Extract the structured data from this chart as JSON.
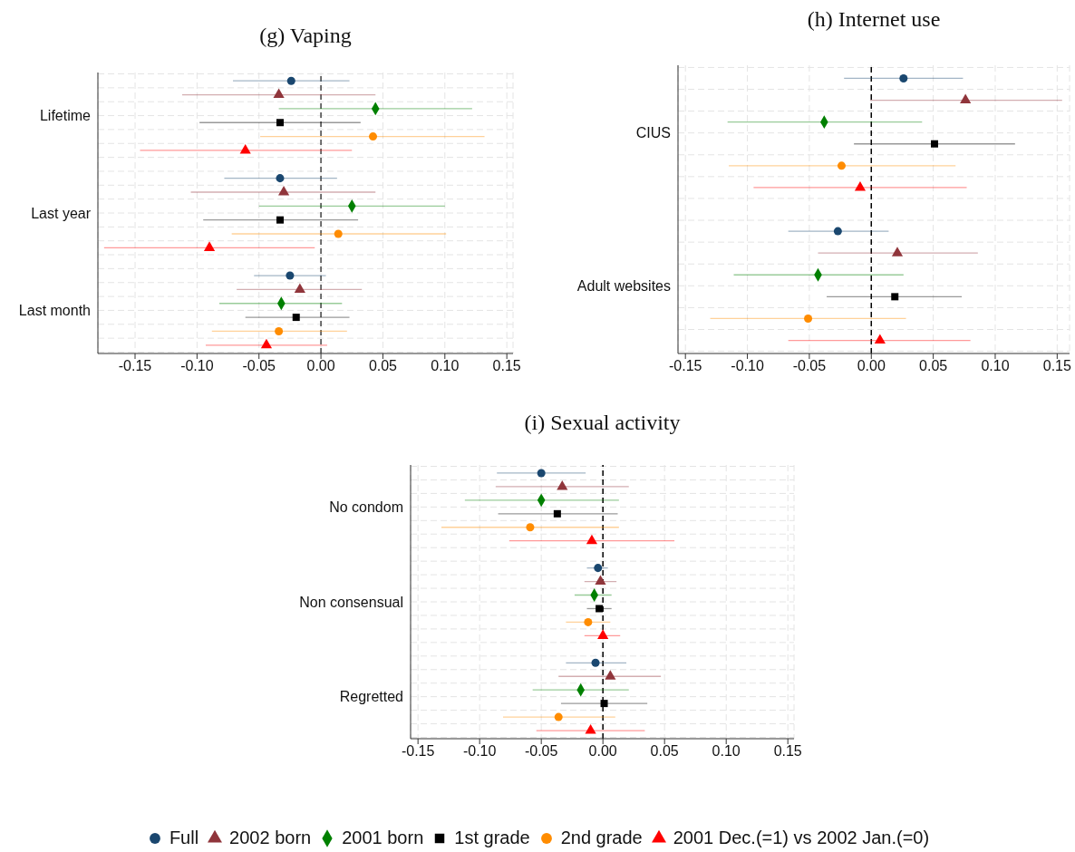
{
  "chart_data": [
    {
      "type": "scatter",
      "title": "(g) Vaping",
      "orientation": "horizontal",
      "categories": [
        "Lifetime",
        "Last year",
        "Last month"
      ],
      "xlim": [
        -0.18,
        0.155
      ],
      "xticks": [
        {
          "value": -0.15,
          "label": "-0.15"
        },
        {
          "value": -0.1,
          "label": "-0.10"
        },
        {
          "value": -0.05,
          "label": "-0.05"
        },
        {
          "value": 0,
          "label": "0.00"
        },
        {
          "value": 0.05,
          "label": "0.05"
        },
        {
          "value": 0.1,
          "label": "0.10"
        },
        {
          "value": 0.15,
          "label": "0.15"
        }
      ],
      "grid": true,
      "ref_lines": [
        {
          "axis": "x",
          "value": 0,
          "line_style": "dashed",
          "color": "#444444"
        }
      ],
      "series": [
        {
          "color": "#1a476f",
          "marker": "circle",
          "values": [
            -0.024,
            -0.033,
            -0.025
          ],
          "errors": [
            [
              -0.071,
              0.023
            ],
            [
              -0.078,
              0.013
            ],
            [
              -0.054,
              0.004
            ]
          ]
        },
        {
          "color": "#90353b",
          "marker": "triangle",
          "values": [
            -0.034,
            -0.03,
            -0.017
          ],
          "errors": [
            [
              -0.112,
              0.044
            ],
            [
              -0.105,
              0.044
            ],
            [
              -0.068,
              0.033
            ]
          ]
        },
        {
          "color": "#008000",
          "marker": "diamond",
          "values": [
            0.044,
            0.025,
            -0.032
          ],
          "errors": [
            [
              -0.034,
              0.122
            ],
            [
              -0.05,
              0.1
            ],
            [
              -0.082,
              0.017
            ]
          ]
        },
        {
          "color": "#000000",
          "marker": "square",
          "values": [
            -0.033,
            -0.033,
            -0.02
          ],
          "errors": [
            [
              -0.098,
              0.032
            ],
            [
              -0.095,
              0.03
            ],
            [
              -0.061,
              0.023
            ]
          ]
        },
        {
          "color": "#ff8c00",
          "marker": "circle",
          "values": [
            0.042,
            0.014,
            -0.034
          ],
          "errors": [
            [
              -0.049,
              0.132
            ],
            [
              -0.072,
              0.101
            ],
            [
              -0.088,
              0.021
            ]
          ]
        },
        {
          "color": "#ff0000",
          "marker": "triangle",
          "values": [
            -0.061,
            -0.09,
            -0.044
          ],
          "errors": [
            [
              -0.146,
              0.025
            ],
            [
              -0.175,
              -0.005
            ],
            [
              -0.093,
              0.005
            ]
          ]
        }
      ]
    },
    {
      "type": "scatter",
      "title": "(h) Internet use",
      "orientation": "horizontal",
      "categories": [
        "CIUS",
        "Adult websites"
      ],
      "xlim": [
        -0.156,
        0.16
      ],
      "xticks": [
        {
          "value": -0.15,
          "label": "-0.15"
        },
        {
          "value": -0.1,
          "label": "-0.10"
        },
        {
          "value": -0.05,
          "label": "-0.05"
        },
        {
          "value": 0,
          "label": "0.00"
        },
        {
          "value": 0.05,
          "label": "0.05"
        },
        {
          "value": 0.1,
          "label": "0.10"
        },
        {
          "value": 0.15,
          "label": "0.15"
        }
      ],
      "grid": true,
      "ref_lines": [
        {
          "axis": "x",
          "value": 0,
          "line_style": "dashed",
          "color": "#000000"
        }
      ],
      "series": [
        {
          "color": "#1a476f",
          "marker": "circle",
          "values": [
            0.026,
            -0.027
          ],
          "errors": [
            [
              -0.022,
              0.074
            ],
            [
              -0.067,
              0.014
            ]
          ]
        },
        {
          "color": "#90353b",
          "marker": "triangle",
          "values": [
            0.076,
            0.021
          ],
          "errors": [
            [
              -0.001,
              0.154
            ],
            [
              -0.043,
              0.086
            ]
          ]
        },
        {
          "color": "#008000",
          "marker": "diamond",
          "values": [
            -0.038,
            -0.043
          ],
          "errors": [
            [
              -0.116,
              0.041
            ],
            [
              -0.111,
              0.026
            ]
          ]
        },
        {
          "color": "#000000",
          "marker": "square",
          "values": [
            0.051,
            0.019
          ],
          "errors": [
            [
              -0.014,
              0.116
            ],
            [
              -0.036,
              0.073
            ]
          ]
        },
        {
          "color": "#ff8c00",
          "marker": "circle",
          "values": [
            -0.024,
            -0.051
          ],
          "errors": [
            [
              -0.115,
              0.068
            ],
            [
              -0.13,
              0.028
            ]
          ]
        },
        {
          "color": "#ff0000",
          "marker": "triangle",
          "values": [
            -0.009,
            0.007
          ],
          "errors": [
            [
              -0.095,
              0.077
            ],
            [
              -0.067,
              0.08
            ]
          ]
        }
      ]
    },
    {
      "type": "scatter",
      "title": "(i) Sexual activity",
      "orientation": "horizontal",
      "categories": [
        "No condom",
        "Non consensual",
        "Regretted"
      ],
      "xlim": [
        -0.156,
        0.155
      ],
      "xticks": [
        {
          "value": -0.15,
          "label": "-0.15"
        },
        {
          "value": -0.1,
          "label": "-0.10"
        },
        {
          "value": -0.05,
          "label": "-0.05"
        },
        {
          "value": 0,
          "label": "0.00"
        },
        {
          "value": 0.05,
          "label": "0.05"
        },
        {
          "value": 0.1,
          "label": "0.10"
        },
        {
          "value": 0.15,
          "label": "0.15"
        }
      ],
      "grid": true,
      "legend": "bottom",
      "ref_lines": [
        {
          "axis": "x",
          "value": 0,
          "line_style": "dashed",
          "color": "#000000"
        }
      ],
      "series": [
        {
          "name": "Full",
          "color": "#1a476f",
          "marker": "circle",
          "values": [
            -0.05,
            -0.004,
            -0.006
          ],
          "errors": [
            [
              -0.086,
              -0.014
            ],
            [
              -0.013,
              0.004
            ],
            [
              -0.03,
              0.019
            ]
          ]
        },
        {
          "name": "2002 born",
          "color": "#90353b",
          "marker": "triangle",
          "values": [
            -0.033,
            -0.002,
            0.006
          ],
          "errors": [
            [
              -0.087,
              0.021
            ],
            [
              -0.015,
              0.011
            ],
            [
              -0.036,
              0.047
            ]
          ]
        },
        {
          "name": "2001 born",
          "color": "#008000",
          "marker": "diamond",
          "values": [
            -0.05,
            -0.007,
            -0.018
          ],
          "errors": [
            [
              -0.112,
              0.013
            ],
            [
              -0.023,
              0.007
            ],
            [
              -0.057,
              0.021
            ]
          ]
        },
        {
          "name": "1st grade",
          "color": "#000000",
          "marker": "square",
          "values": [
            -0.037,
            -0.003,
            0.001
          ],
          "errors": [
            [
              -0.085,
              0.012
            ],
            [
              -0.013,
              0.007
            ],
            [
              -0.034,
              0.036
            ]
          ]
        },
        {
          "name": "2nd grade",
          "color": "#ff8c00",
          "marker": "circle",
          "values": [
            -0.059,
            -0.012,
            -0.036
          ],
          "errors": [
            [
              -0.131,
              0.013
            ],
            [
              -0.03,
              0.006
            ],
            [
              -0.081,
              0.01
            ]
          ]
        },
        {
          "name": "2001 Dec.(=1) vs 2002 Jan.(=0)",
          "color": "#ff0000",
          "marker": "triangle",
          "values": [
            -0.009,
            0.0,
            -0.01
          ],
          "errors": [
            [
              -0.076,
              0.058
            ],
            [
              -0.015,
              0.014
            ],
            [
              -0.054,
              0.034
            ]
          ]
        }
      ]
    }
  ]
}
